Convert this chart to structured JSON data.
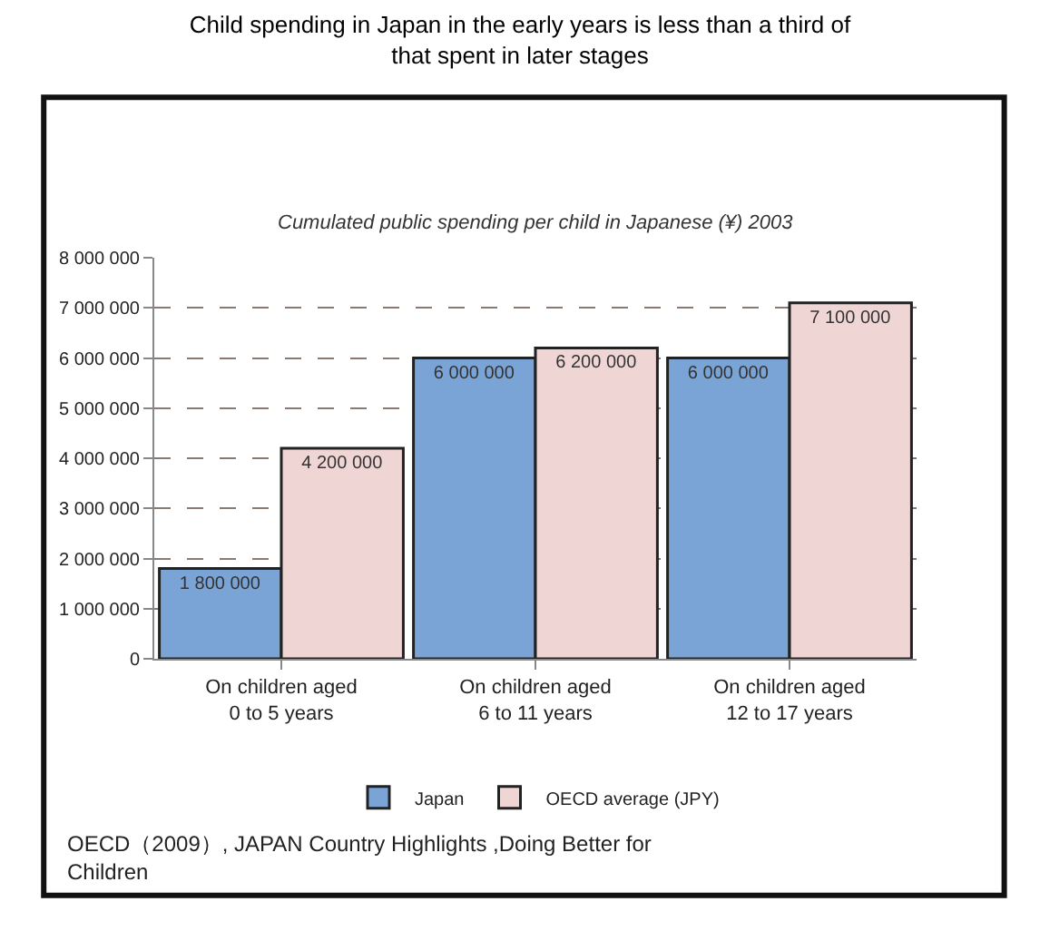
{
  "chart_data": {
    "type": "bar",
    "title": "Child spending in Japan in the early years is less than a third of that spent in later stages",
    "subtitle": "Cumulated public spending per child in Japanese (¥) 2003",
    "categories": [
      "On children aged 0 to 5 years",
      "On children aged 6 to 11 years",
      "On children aged 12 to 17 years"
    ],
    "series": [
      {
        "name": "Japan",
        "color": "#7ba4d6",
        "values": [
          1800000,
          6000000,
          6000000
        ],
        "value_labels": [
          "1 800 000",
          "6 000 000",
          "6 000 000"
        ]
      },
      {
        "name": "OECD average (JPY)",
        "color": "#f0d5d5",
        "values": [
          4200000,
          6200000,
          7100000
        ],
        "value_labels": [
          "4 200 000",
          "6 200 000",
          "7 100 000"
        ]
      }
    ],
    "ylim": [
      0,
      8000000
    ],
    "yticks": [
      0,
      {
        "value": 1000000,
        "label": "1 000 000"
      },
      {
        "value": 2000000,
        "label": "2 000 000"
      },
      {
        "value": 3000000,
        "label": "3 000 000"
      },
      {
        "value": 4000000,
        "label": "4 000 000"
      },
      {
        "value": 5000000,
        "label": "5 000 000"
      },
      {
        "value": 6000000,
        "label": "6 000 000"
      },
      {
        "value": 7000000,
        "label": "7 000 000"
      },
      {
        "value": 8000000,
        "label": "8 000 000"
      }
    ],
    "grid": "y",
    "legend": "bottom",
    "annotations": [
      "OECD（2009）, JAPAN Country Highlights ,Doing Better for Children"
    ]
  }
}
